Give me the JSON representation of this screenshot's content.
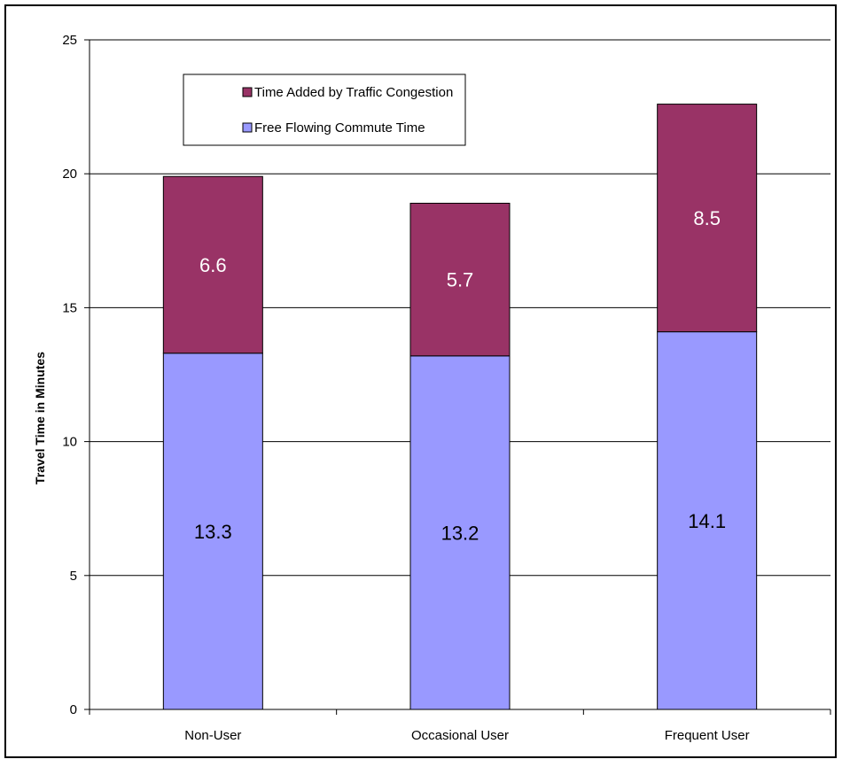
{
  "chart_data": {
    "type": "bar",
    "stacked": true,
    "categories": [
      "Non-User",
      "Occasional User",
      "Frequent User"
    ],
    "series": [
      {
        "name": "Free Flowing Commute Time",
        "values": [
          13.3,
          13.2,
          14.1
        ],
        "color": "#9999ff"
      },
      {
        "name": "Time Added by Traffic Congestion",
        "values": [
          6.6,
          5.7,
          8.5
        ],
        "color": "#993366"
      }
    ],
    "legend_order": [
      1,
      0
    ],
    "title": "",
    "xlabel": "",
    "ylabel": "Travel Time in Minutes",
    "ylim": [
      0,
      25
    ],
    "yticks": [
      "0",
      "5",
      "10",
      "15",
      "20",
      "25"
    ],
    "grid": true,
    "legend_position": "top-left, inside plot area"
  }
}
